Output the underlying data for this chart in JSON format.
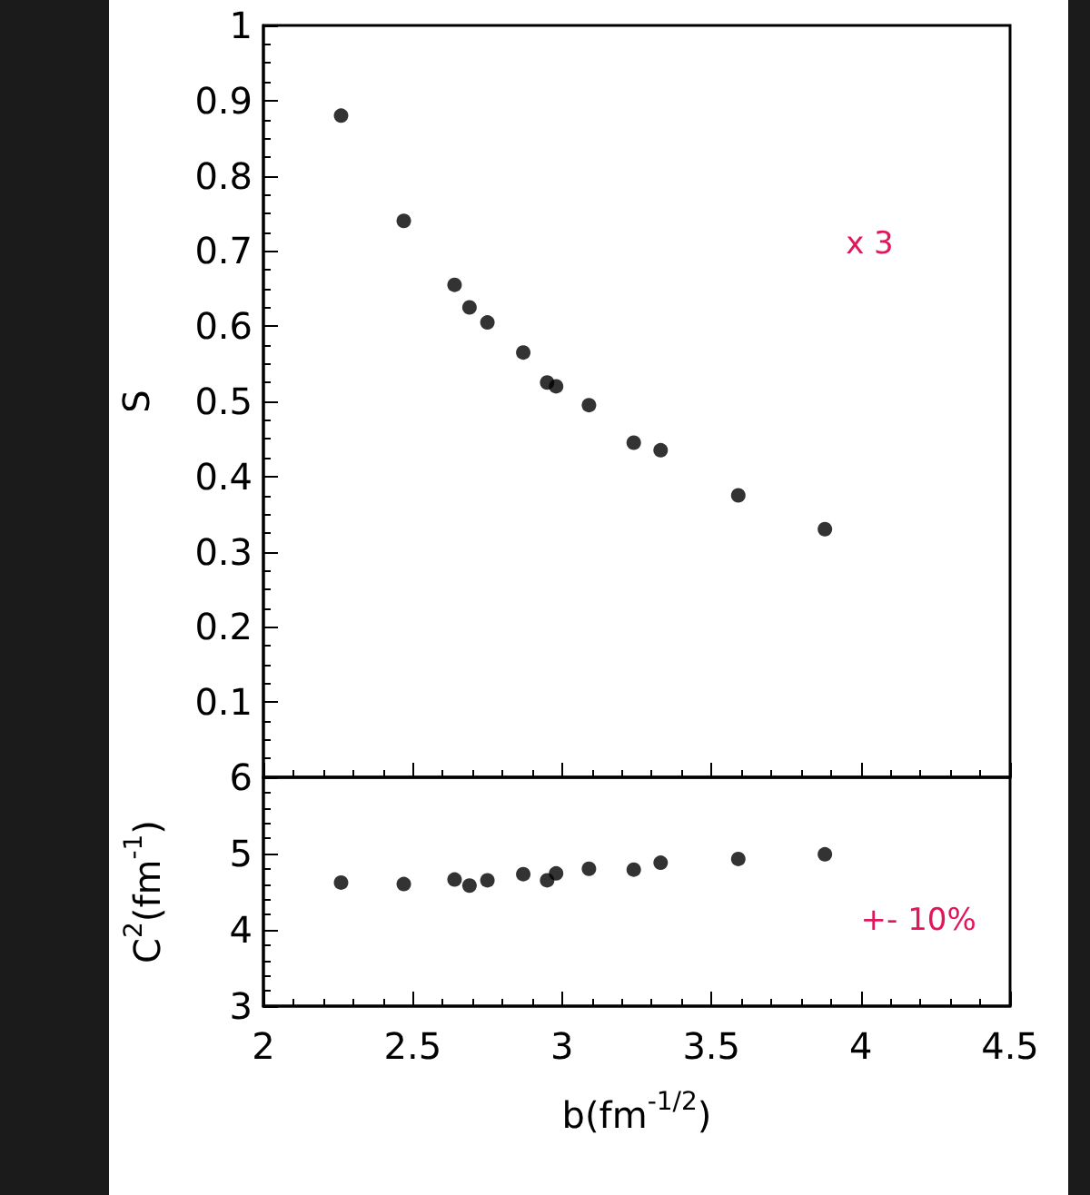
{
  "chart_data": [
    {
      "type": "scatter",
      "ylabel": "S",
      "annotations": [
        "x 3"
      ],
      "tick_labels": "y",
      "marker": "circle",
      "grid": false,
      "x": [
        2.26,
        2.47,
        2.64,
        2.69,
        2.75,
        2.87,
        2.95,
        2.98,
        3.09,
        3.24,
        3.33,
        3.59,
        3.88
      ],
      "series": [
        {
          "color": "#000000",
          "values": [
            0.88,
            0.74,
            0.655,
            0.625,
            0.605,
            0.565,
            0.525,
            0.52,
            0.495,
            0.445,
            0.435,
            0.375,
            0.33
          ]
        }
      ],
      "xlim": [
        2,
        4.5
      ],
      "ylim": [
        0,
        1
      ],
      "yticks": [
        0.1,
        0.2,
        0.3,
        0.4,
        0.5,
        0.6,
        0.7,
        0.8,
        0.9,
        1
      ]
    },
    {
      "type": "scatter",
      "ylabel": "C$^{2}$(fm$^{-1}$)",
      "xlabel": "b(fm$^{-1/2}$)",
      "annotations": [
        "+- 10%"
      ],
      "marker": "circle",
      "grid": false,
      "x": [
        2.26,
        2.47,
        2.64,
        2.69,
        2.75,
        2.87,
        2.95,
        2.98,
        3.09,
        3.24,
        3.33,
        3.59,
        3.88
      ],
      "series": [
        {
          "color": "#000000",
          "values": [
            4.62,
            4.6,
            4.66,
            4.58,
            4.65,
            4.73,
            4.65,
            4.74,
            4.8,
            4.79,
            4.88,
            4.93,
            4.99
          ]
        }
      ],
      "xlim": [
        2,
        4.5
      ],
      "xticks": [
        2,
        2.5,
        3,
        3.5,
        4,
        4.5
      ],
      "ylim": [
        3,
        6
      ],
      "yticks": [
        3,
        4,
        5,
        6
      ]
    }
  ]
}
